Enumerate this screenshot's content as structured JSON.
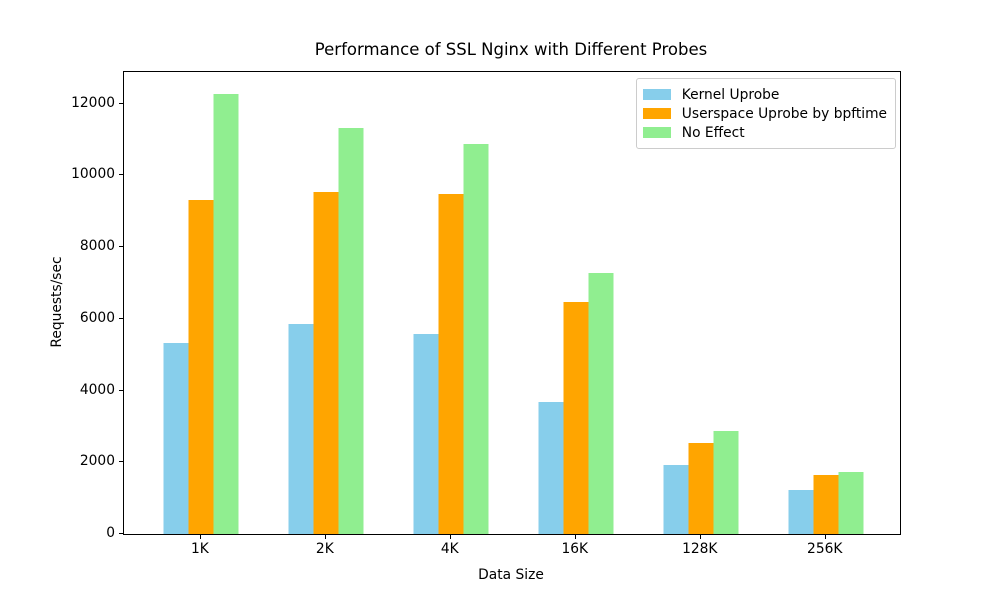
{
  "chart_data": {
    "type": "bar",
    "title": "Performance of SSL Nginx with Different Probes",
    "xlabel": "Data Size",
    "ylabel": "Requests/sec",
    "categories": [
      "1K",
      "2K",
      "4K",
      "16K",
      "128K",
      "256K"
    ],
    "series": [
      {
        "name": "Kernel Uprobe",
        "color": "#87CEEB",
        "values": [
          5330,
          5860,
          5590,
          3680,
          1920,
          1220
        ]
      },
      {
        "name": "Userspace Uprobe by bpftime",
        "color": "#FFA500",
        "values": [
          9300,
          9540,
          9490,
          6470,
          2550,
          1640
        ]
      },
      {
        "name": "No Effect",
        "color": "#90EE90",
        "values": [
          12280,
          11330,
          10870,
          7270,
          2860,
          1740
        ]
      }
    ],
    "yticks": [
      0,
      2000,
      4000,
      6000,
      8000,
      10000,
      12000
    ],
    "ylim": [
      0,
      12880
    ],
    "xlim_units": [
      -0.615,
      5.594
    ],
    "grid": false,
    "legend_position": "upper right",
    "colors": {
      "axes": "#000000",
      "text": "#000000",
      "legend_border": "#cccccc",
      "background": "#ffffff"
    }
  }
}
